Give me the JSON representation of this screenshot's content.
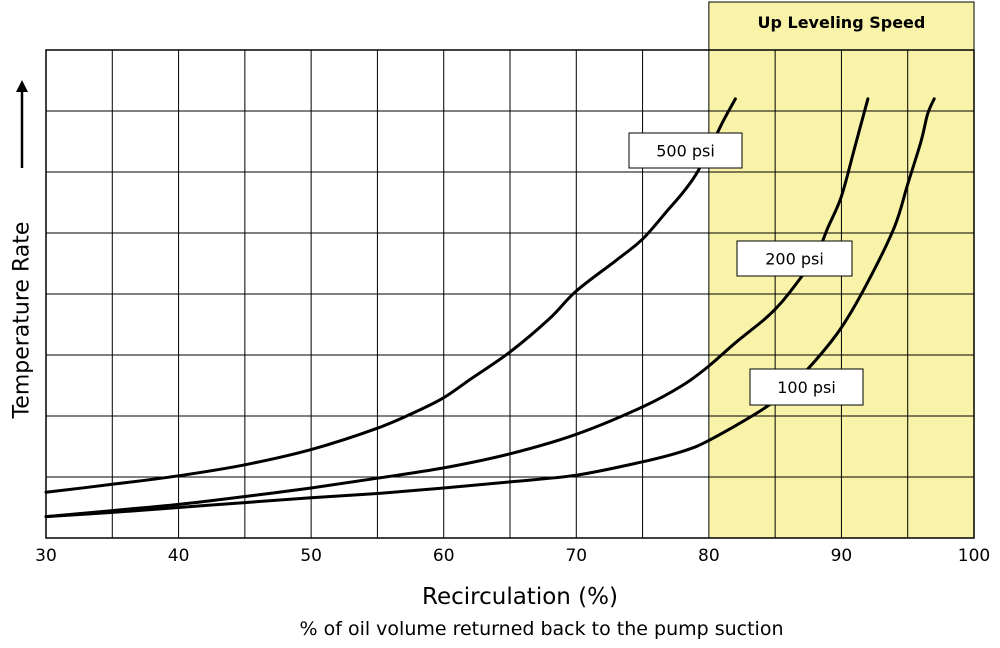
{
  "chart_data": {
    "type": "line",
    "xlabel": "Recirculation (%)",
    "x_sublabel": "% of oil volume returned back to the pump suction",
    "ylabel": "Temperature Rate",
    "xlim": [
      30,
      100
    ],
    "ylim": [
      0,
      8
    ],
    "x_ticks": [
      30,
      40,
      50,
      60,
      70,
      80,
      90,
      100
    ],
    "x_gridlines": [
      30,
      35,
      40,
      45,
      50,
      55,
      60,
      65,
      70,
      75,
      80,
      85,
      90,
      95,
      100
    ],
    "y_gridlines": [
      0,
      1,
      2,
      3,
      4,
      5,
      6,
      7,
      8
    ],
    "grid": true,
    "legend": "none",
    "highlight_band": {
      "label": "Up Leveling Speed",
      "x_start": 80,
      "x_end": 100,
      "color": "#f8f3a8"
    },
    "series": [
      {
        "name": "500 psi",
        "x": [
          30,
          35,
          40,
          45,
          50,
          55,
          58,
          60,
          62,
          65,
          68,
          70,
          73,
          75,
          77,
          78,
          79,
          80,
          81,
          82
        ],
        "y": [
          0.75,
          0.88,
          1.02,
          1.2,
          1.45,
          1.8,
          2.08,
          2.3,
          2.6,
          3.05,
          3.6,
          4.05,
          4.55,
          4.9,
          5.4,
          5.65,
          5.95,
          6.35,
          6.8,
          7.2
        ]
      },
      {
        "name": "200 psi",
        "x": [
          30,
          35,
          40,
          45,
          50,
          55,
          60,
          65,
          70,
          75,
          78,
          80,
          82,
          84,
          85,
          86,
          88,
          89,
          90,
          91,
          92
        ],
        "y": [
          0.35,
          0.45,
          0.55,
          0.68,
          0.82,
          0.98,
          1.15,
          1.38,
          1.7,
          2.15,
          2.5,
          2.82,
          3.2,
          3.55,
          3.75,
          4.0,
          4.6,
          5.1,
          5.6,
          6.4,
          7.2
        ]
      },
      {
        "name": "100 psi",
        "x": [
          30,
          35,
          40,
          45,
          50,
          55,
          60,
          65,
          70,
          75,
          78,
          80,
          84,
          86,
          88,
          90,
          92,
          94,
          95,
          96,
          96.5,
          97
        ],
        "y": [
          0.35,
          0.42,
          0.5,
          0.58,
          0.66,
          0.73,
          0.82,
          0.92,
          1.03,
          1.25,
          1.42,
          1.6,
          2.1,
          2.45,
          2.9,
          3.45,
          4.2,
          5.1,
          5.8,
          6.5,
          6.95,
          7.2
        ]
      }
    ]
  }
}
